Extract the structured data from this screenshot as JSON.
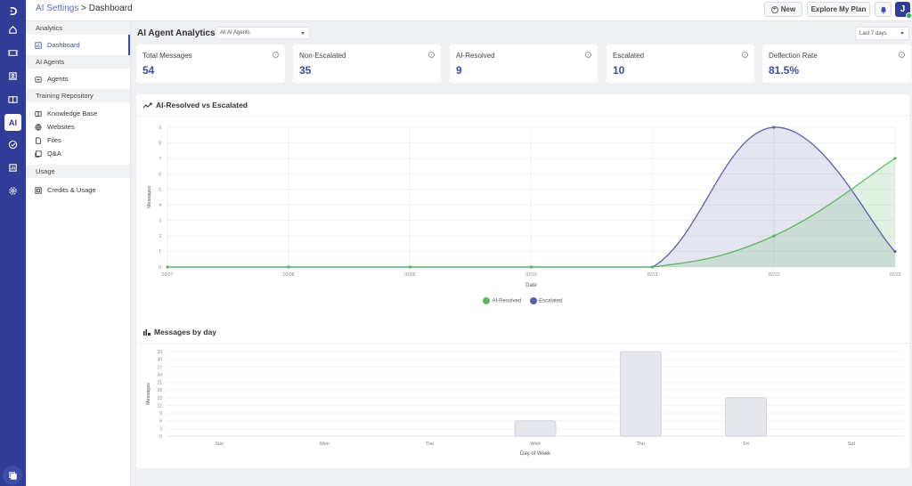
{
  "header": {
    "breadcrumb_link": "AI Settings",
    "breadcrumb_sep": " > ",
    "breadcrumb_current": "Dashboard",
    "new_label": "New",
    "explore_label": "Explore My Plan",
    "avatar_initial": "J"
  },
  "rail": {
    "icons": [
      "logo-icon",
      "home-icon",
      "ticket-icon",
      "contacts-icon",
      "knowledge-icon",
      "ai-icon",
      "tasks-icon",
      "reports-icon",
      "settings-icon",
      "chat-icon"
    ],
    "active_label": "AI"
  },
  "sidebar": {
    "sections": [
      {
        "title": "Analytics",
        "items": [
          {
            "label": "Dashboard",
            "icon": "dashboard-icon",
            "active": true
          }
        ]
      },
      {
        "title": "AI Agents",
        "items": [
          {
            "label": "Agents",
            "icon": "agent-icon"
          }
        ]
      },
      {
        "title": "Training Repository",
        "items": [
          {
            "label": "Knowledge Base",
            "icon": "book-icon"
          },
          {
            "label": "Websites",
            "icon": "globe-icon"
          },
          {
            "label": "Files",
            "icon": "file-icon"
          },
          {
            "label": "Q&A",
            "icon": "qa-icon"
          }
        ]
      },
      {
        "title": "Usage",
        "items": [
          {
            "label": "Credits & Usage",
            "icon": "credits-icon"
          }
        ]
      }
    ]
  },
  "main": {
    "title": "AI Agent Analytics -",
    "agent_filter": "All AI Agents",
    "date_range": "Last 7 days",
    "cards": [
      {
        "label": "Total Messages",
        "value": "54"
      },
      {
        "label": "Non-Escalated",
        "value": "35"
      },
      {
        "label": "AI-Resolved",
        "value": "9"
      },
      {
        "label": "Escalated",
        "value": "10"
      },
      {
        "label": "Deflection Rate",
        "value": "81.5%"
      }
    ],
    "line_panel_title": "AI-Resolved vs Escalated",
    "bar_panel_title": "Messages by day"
  },
  "colors": {
    "brand": "#2f3d97",
    "accent": "#3d4ca6",
    "ai_resolved": "#5cb85c",
    "escalated": "#5a5fa8"
  },
  "chart_data": [
    {
      "type": "area",
      "title": "AI-Resolved vs Escalated",
      "xlabel": "Date",
      "ylabel": "Messages",
      "x": [
        "02/07",
        "02/08",
        "02/09",
        "02/10",
        "02/11",
        "02/12",
        "02/13"
      ],
      "series": [
        {
          "name": "AI-Resolved",
          "values": [
            0,
            0,
            0,
            0,
            0,
            2,
            7
          ],
          "color": "#5cb85c"
        },
        {
          "name": "Escalated",
          "values": [
            0,
            0,
            0,
            0,
            0,
            9,
            1
          ],
          "color": "#5a5fa8"
        }
      ],
      "ylim": [
        0,
        9
      ],
      "yticks": [
        0,
        1,
        2,
        3,
        4,
        5,
        6,
        7,
        8,
        9
      ],
      "legend_position": "bottom",
      "grid": true
    },
    {
      "type": "bar",
      "title": "Messages by day",
      "xlabel": "Day of Week",
      "ylabel": "Messages",
      "categories": [
        "Sun",
        "Mon",
        "Tue",
        "Wed",
        "Thu",
        "Fri",
        "Sat"
      ],
      "values": [
        0,
        0,
        0,
        6,
        33,
        15,
        0
      ],
      "ylim": [
        0,
        33
      ],
      "yticks": [
        0,
        3,
        6,
        9,
        12,
        15,
        18,
        21,
        24,
        27,
        30,
        33
      ],
      "grid": true
    }
  ]
}
